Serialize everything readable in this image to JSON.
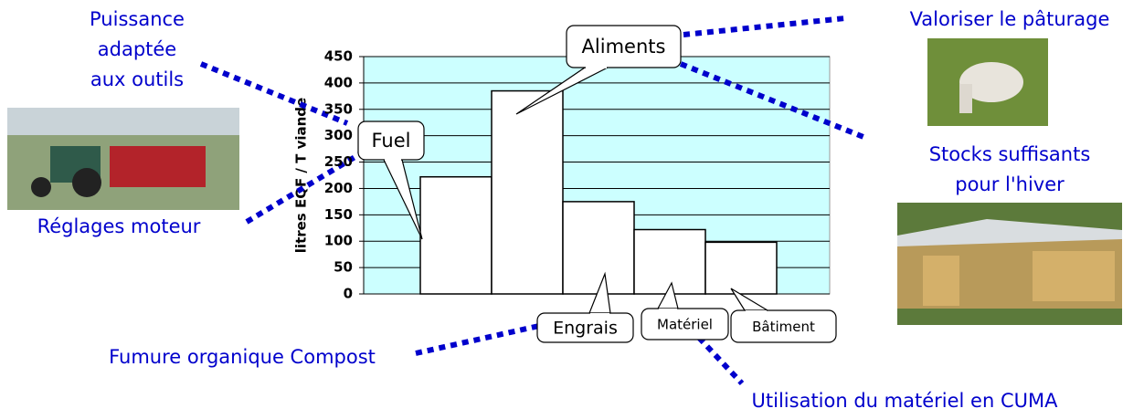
{
  "chart_data": {
    "type": "bar",
    "y_label": "litres EQF / T viande",
    "categories": [
      "Fuel",
      "Aliments",
      "Engrais",
      "Matériel",
      "Bâtiment"
    ],
    "values": [
      222,
      385,
      175,
      122,
      98
    ],
    "color": "#ffffff",
    "background": "#ccffff",
    "ylim": [
      0,
      450
    ],
    "yticks": [
      0,
      50,
      100,
      150,
      200,
      250,
      300,
      350,
      400,
      450
    ],
    "grid": true,
    "annotations": [
      [
        "Puissance",
        "adaptée",
        "aux outils"
      ],
      [
        "Réglages moteur"
      ],
      [
        "Valoriser le pâturage"
      ],
      [
        "Stocks suffisants",
        "pour l'hiver"
      ],
      [
        "Fumure organique Compost"
      ],
      [
        "Utilisation du matériel en CUMA"
      ]
    ]
  }
}
